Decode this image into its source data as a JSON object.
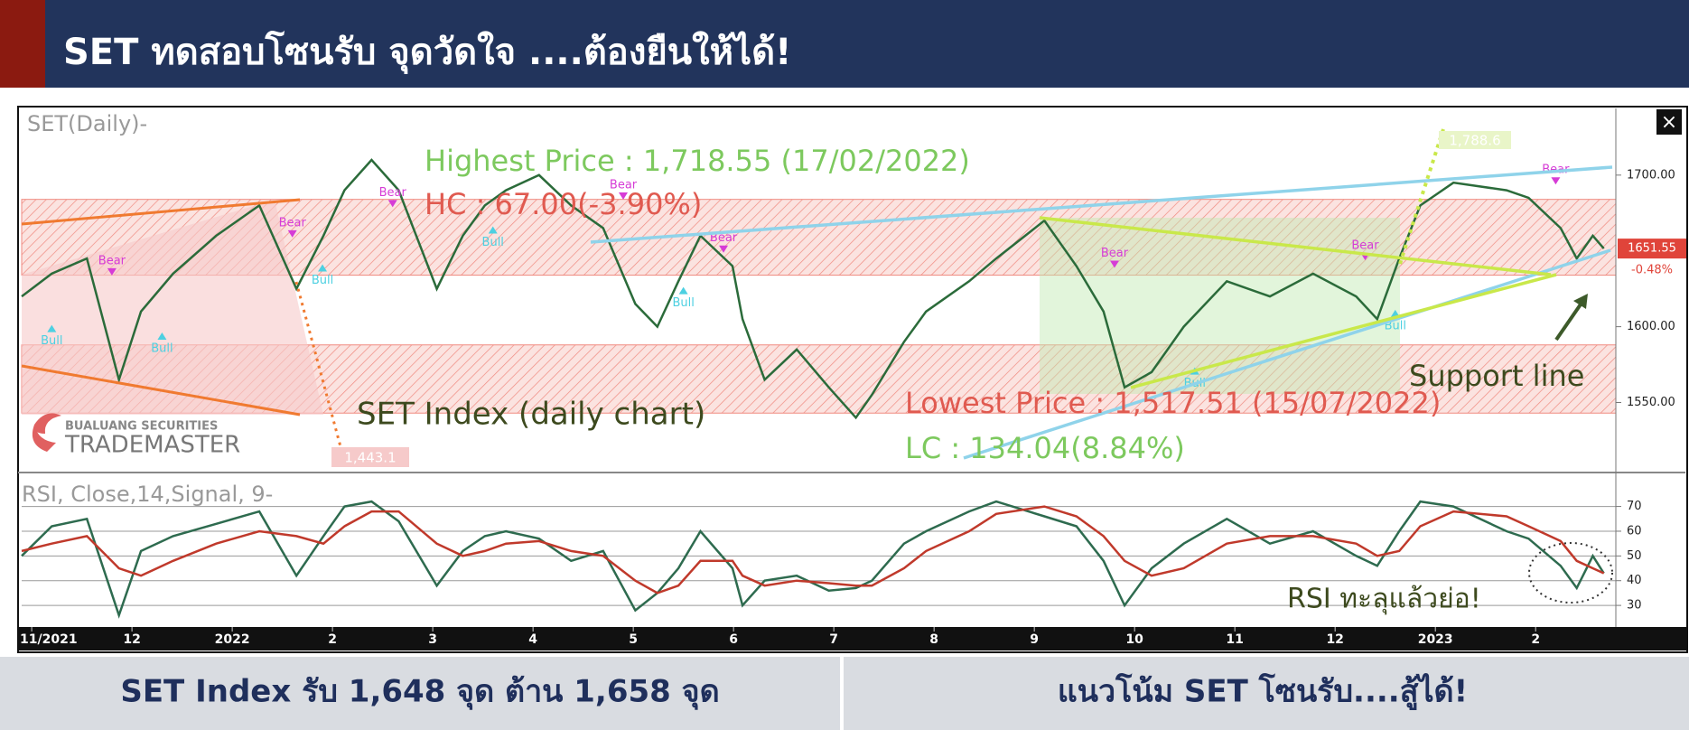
{
  "header": {
    "title": "SET ทดสอบโซนรับ จุดวัดใจ ....ต้องยืนให้ได้!"
  },
  "footer": {
    "left": "SET Index รับ 1,648 จุด ต้าน 1,658  จุด",
    "right": "แนวโน้ม SET โซนรับ....สู้ได้!"
  },
  "logo": {
    "top": "BUALUANG SECURITIES",
    "name": "TRADEMASTER"
  },
  "chart_data": [
    {
      "type": "line",
      "panel_label": "SET(Daily)-",
      "annotations": [
        "Highest Price : 1,718.55 (17/02/2022)",
        "HC : 67.00(-3.90%)",
        "Lowest Price : 1,517.51 (15/07/2022)",
        "LC : 134.04(8.84%)",
        "SET Index (daily chart)",
        "Support line",
        "1,443.1",
        "1,788.6"
      ],
      "last_price_label": "1651.55",
      "change_label": "-0.48%",
      "x": [
        -0.1,
        0.2,
        0.55,
        0.87,
        1.09,
        1.41,
        1.84,
        2.27,
        2.64,
        2.91,
        3.12,
        3.39,
        3.66,
        4.04,
        4.3,
        4.52,
        4.73,
        5.06,
        5.38,
        5.7,
        6.02,
        6.24,
        6.45,
        6.67,
        6.99,
        7.09,
        7.31,
        7.63,
        7.95,
        8.22,
        8.38,
        8.7,
        8.92,
        9.35,
        9.62,
        10.1,
        10.42,
        10.69,
        10.9,
        11.17,
        11.49,
        11.92,
        12.35,
        12.78,
        13.21,
        13.42,
        13.64,
        13.85,
        14.18,
        14.71,
        14.93,
        15.25,
        15.41,
        15.57,
        15.68
      ],
      "series": [
        {
          "name": "SET",
          "color": "#2b6b3a",
          "values": [
            1620,
            1635,
            1645,
            1565,
            1610,
            1635,
            1660,
            1680,
            1625,
            1660,
            1690,
            1710,
            1690,
            1625,
            1660,
            1680,
            1690,
            1700,
            1680,
            1665,
            1615,
            1600,
            1630,
            1660,
            1640,
            1605,
            1565,
            1585,
            1560,
            1540,
            1555,
            1590,
            1610,
            1630,
            1645,
            1670,
            1640,
            1610,
            1560,
            1570,
            1600,
            1630,
            1620,
            1635,
            1620,
            1605,
            1645,
            1680,
            1695,
            1690,
            1685,
            1665,
            1645,
            1660,
            1651.55
          ]
        }
      ],
      "zones": [
        [
          1634,
          1684
        ],
        [
          1543,
          1588
        ]
      ],
      "signals": [
        {
          "label": "Bull",
          "x": 0.2,
          "price": 1600
        },
        {
          "label": "Bear",
          "x": 0.8,
          "price": 1635
        },
        {
          "label": "Bull",
          "x": 1.3,
          "price": 1595
        },
        {
          "label": "Bear",
          "x": 2.6,
          "price": 1660
        },
        {
          "label": "Bull",
          "x": 2.9,
          "price": 1640
        },
        {
          "label": "Bear",
          "x": 3.6,
          "price": 1680
        },
        {
          "label": "Bull",
          "x": 4.6,
          "price": 1665
        },
        {
          "label": "Bear",
          "x": 5.9,
          "price": 1685
        },
        {
          "label": "Bull",
          "x": 6.5,
          "price": 1625
        },
        {
          "label": "Bear",
          "x": 6.9,
          "price": 1650
        },
        {
          "label": "Bear",
          "x": 10.8,
          "price": 1640
        },
        {
          "label": "Bull",
          "x": 11.6,
          "price": 1572
        },
        {
          "label": "Bear",
          "x": 13.3,
          "price": 1645
        },
        {
          "label": "Bull",
          "x": 13.6,
          "price": 1610
        },
        {
          "label": "Bear",
          "x": 15.2,
          "price": 1695
        }
      ],
      "xlim": [
        -0.1,
        15.8
      ],
      "ylim": [
        1505,
        1744
      ],
      "yticks": [
        {
          "value": 1700,
          "label": "1700.00"
        },
        {
          "value": 1600,
          "label": "1600.00"
        },
        {
          "value": 1550,
          "label": "1550.00"
        }
      ]
    },
    {
      "type": "line",
      "panel_label": "RSI, Close,14,Signal, 9-",
      "annotations": [
        "RSI ทะลุแล้วย่อ!"
      ],
      "x": [
        -0.1,
        0.2,
        0.55,
        0.87,
        1.09,
        1.41,
        1.84,
        2.27,
        2.64,
        2.91,
        3.12,
        3.39,
        3.66,
        4.04,
        4.3,
        4.52,
        4.73,
        5.06,
        5.38,
        5.7,
        6.02,
        6.24,
        6.45,
        6.67,
        6.99,
        7.09,
        7.31,
        7.63,
        7.95,
        8.22,
        8.38,
        8.7,
        8.92,
        9.35,
        9.62,
        10.1,
        10.42,
        10.69,
        10.9,
        11.17,
        11.49,
        11.92,
        12.35,
        12.78,
        13.21,
        13.42,
        13.64,
        13.85,
        14.18,
        14.71,
        14.93,
        15.25,
        15.41,
        15.57,
        15.68
      ],
      "series": [
        {
          "name": "RSI",
          "color": "#2e6b4f",
          "values": [
            50,
            62,
            65,
            26,
            52,
            58,
            63,
            68,
            42,
            58,
            70,
            72,
            64,
            38,
            52,
            58,
            60,
            57,
            48,
            52,
            28,
            35,
            45,
            60,
            45,
            30,
            40,
            42,
            36,
            37,
            40,
            55,
            60,
            68,
            72,
            66,
            62,
            48,
            30,
            45,
            55,
            65,
            55,
            60,
            50,
            46,
            60,
            72,
            70,
            60,
            57,
            46,
            37,
            50,
            43
          ]
        },
        {
          "name": "Signal",
          "color": "#c0392b",
          "values": [
            52,
            55,
            58,
            45,
            42,
            48,
            55,
            60,
            58,
            55,
            62,
            68,
            68,
            55,
            50,
            52,
            55,
            56,
            52,
            50,
            40,
            35,
            38,
            48,
            48,
            42,
            38,
            40,
            39,
            38,
            38,
            45,
            52,
            60,
            67,
            70,
            66,
            58,
            48,
            42,
            45,
            55,
            58,
            58,
            55,
            50,
            52,
            62,
            68,
            66,
            62,
            56,
            48,
            45,
            43
          ]
        }
      ],
      "xlim": [
        -0.1,
        15.8
      ],
      "ylim": [
        22,
        83
      ],
      "yticks": [
        30,
        40,
        50,
        60,
        70
      ],
      "grid": true,
      "xticks": [
        {
          "value": 0,
          "label": "11/2021"
        },
        {
          "value": 1,
          "label": "12"
        },
        {
          "value": 2,
          "label": "2022"
        },
        {
          "value": 3,
          "label": "2"
        },
        {
          "value": 4,
          "label": "3"
        },
        {
          "value": 5,
          "label": "4"
        },
        {
          "value": 6,
          "label": "5"
        },
        {
          "value": 7,
          "label": "6"
        },
        {
          "value": 8,
          "label": "7"
        },
        {
          "value": 9,
          "label": "8"
        },
        {
          "value": 10,
          "label": "9"
        },
        {
          "value": 11,
          "label": "10"
        },
        {
          "value": 12,
          "label": "11"
        },
        {
          "value": 13,
          "label": "12"
        },
        {
          "value": 14,
          "label": "2023"
        },
        {
          "value": 15,
          "label": "2"
        }
      ]
    }
  ]
}
